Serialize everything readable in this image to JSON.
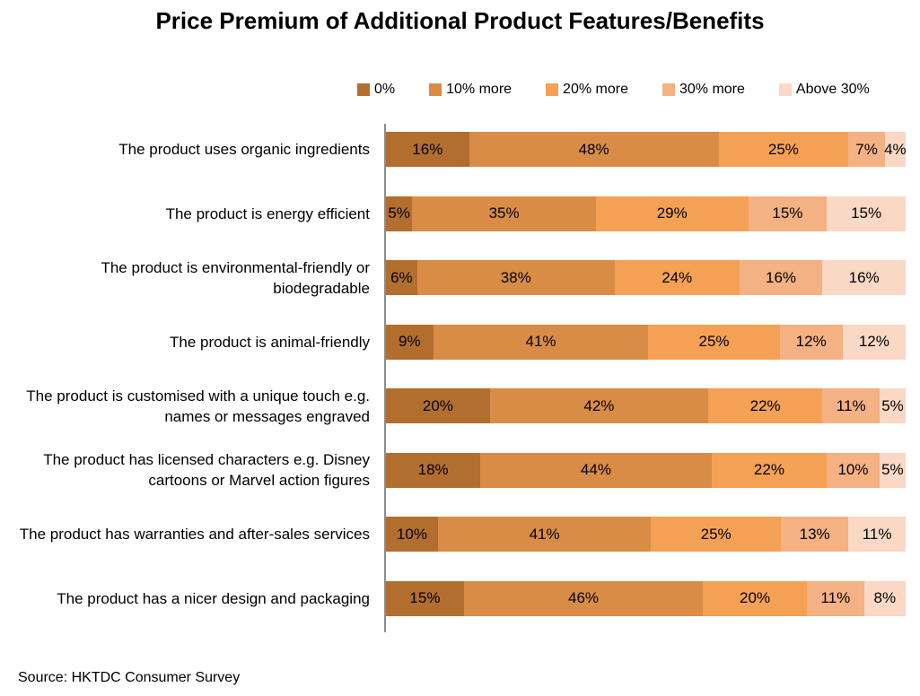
{
  "title": "Price Premium of Additional Product Features/Benefits",
  "source": "Source: HKTDC Consumer Survey",
  "legend": [
    "0%",
    "10% more",
    "20% more",
    "30% more",
    "Above 30%"
  ],
  "series_colors": [
    "#B26E2F",
    "#D98C46",
    "#F5A155",
    "#F4B183",
    "#F9D8C5"
  ],
  "axis_color": "#8c8c8c",
  "chart_data": {
    "type": "bar",
    "variant": "100%-stacked-horizontal",
    "title": "Price Premium of Additional Product Features/Benefits",
    "legend_position": "top",
    "grid": false,
    "value_labels": "inside, percent",
    "categories": [
      "The product uses organic ingredients",
      "The product is energy efficient",
      "The product is environmental-friendly or biodegradable",
      "The product is animal-friendly",
      "The product is customised with a unique touch e.g. names or messages engraved",
      "The product has licensed characters e.g. Disney cartoons or Marvel action figures",
      "The product has warranties and after-sales services",
      "The product has a nicer design and packaging"
    ],
    "series": [
      {
        "name": "0%",
        "values": [
          16,
          5,
          6,
          9,
          20,
          18,
          10,
          15
        ]
      },
      {
        "name": "10% more",
        "values": [
          48,
          35,
          38,
          41,
          42,
          44,
          41,
          46
        ]
      },
      {
        "name": "20% more",
        "values": [
          25,
          29,
          24,
          25,
          22,
          22,
          25,
          20
        ]
      },
      {
        "name": "30% more",
        "values": [
          7,
          15,
          16,
          12,
          11,
          10,
          13,
          11
        ]
      },
      {
        "name": "Above 30%",
        "values": [
          4,
          15,
          16,
          12,
          5,
          5,
          11,
          8
        ]
      }
    ]
  }
}
